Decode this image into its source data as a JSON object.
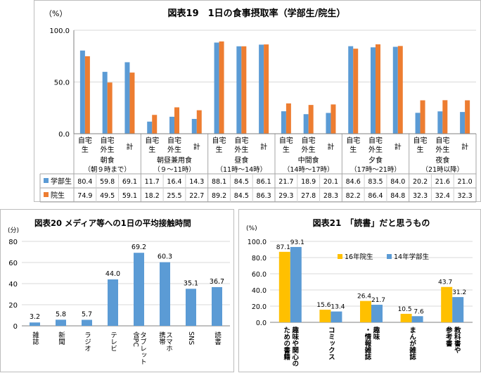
{
  "chart_data": [
    {
      "type": "bar",
      "title": "図表19　1日の食事摂取率（学部生/院生）",
      "unit": "（%）",
      "ylim": [
        0,
        100
      ],
      "yticks": [
        "0.0",
        "50.0",
        "100.0"
      ],
      "sub_labels": [
        [
          "自宅",
          "生"
        ],
        [
          "自宅",
          "外生"
        ],
        [
          "計"
        ]
      ],
      "groups": [
        {
          "label": "朝食",
          "sub": "（朝９時まで）"
        },
        {
          "label": "朝昼兼用食",
          "sub": "（９～11時）"
        },
        {
          "label": "昼食",
          "sub": "（11時～14時）"
        },
        {
          "label": "中間食",
          "sub": "（14時～17時）"
        },
        {
          "label": "夕食",
          "sub": "（17時～21時）"
        },
        {
          "label": "夜食",
          "sub": "（21時以降）"
        }
      ],
      "series": [
        {
          "name": "学部生",
          "color": "#5b9bd5",
          "values": [
            80.4,
            59.8,
            69.1,
            11.7,
            16.4,
            14.3,
            88.1,
            84.5,
            86.1,
            21.7,
            18.9,
            20.1,
            84.6,
            83.5,
            84.0,
            20.2,
            21.6,
            21.0
          ],
          "labels": [
            "80.4",
            "59.8",
            "69.1",
            "11.7",
            "16.4",
            "14.3",
            "88.1",
            "84.5",
            "86.1",
            "21.7",
            "18.9",
            "20.1",
            "84.6",
            "83.5",
            "84.0",
            "20.2",
            "21.6",
            "21.0"
          ]
        },
        {
          "name": "院生",
          "color": "#ed7d31",
          "values": [
            74.9,
            49.5,
            59.1,
            18.2,
            25.5,
            22.7,
            89.2,
            84.5,
            86.3,
            29.3,
            27.8,
            28.3,
            82.2,
            86.4,
            84.8,
            32.3,
            32.4,
            32.3
          ],
          "labels": [
            "74.9",
            "49.5",
            "59.1",
            "18.2",
            "25.5",
            "22.7",
            "89.2",
            "84.5",
            "86.3",
            "29.3",
            "27.8",
            "28.3",
            "82.2",
            "86.4",
            "84.8",
            "32.3",
            "32.4",
            "32.3"
          ]
        }
      ]
    },
    {
      "type": "bar",
      "title": "図表20 メディア等への1日の平均接触時間",
      "unit": "(分)",
      "ylim": [
        0,
        80
      ],
      "yticks": [
        "0",
        "20",
        "40",
        "60",
        "80"
      ],
      "categories": [
        "雑誌",
        "新聞",
        "ラジオ",
        "テレビ",
        "タブレット含PC",
        "スマホ携帯",
        "SNS",
        "読書"
      ],
      "series": [
        {
          "name": "",
          "color": "#5b9bd5",
          "values": [
            3.2,
            5.8,
            5.7,
            44.0,
            69.2,
            60.3,
            35.1,
            36.7
          ],
          "labels": [
            "3.2",
            "5.8",
            "5.7",
            "44.0",
            "69.2",
            "60.3",
            "35.1",
            "36.7"
          ]
        }
      ]
    },
    {
      "type": "bar",
      "title": "図表21　「読書」だと思うもの",
      "unit": "(%)",
      "ylim": [
        0,
        100
      ],
      "yticks": [
        "0.0",
        "20.0",
        "40.0",
        "60.0",
        "80.0",
        "100.0"
      ],
      "categories": [
        "趣味や関心のための書籍",
        "コミックス",
        "趣味・情報雑誌",
        "まんが雑誌",
        "教科書や参考書"
      ],
      "legend_position": "top-right",
      "series": [
        {
          "name": "16年院生",
          "color": "#ffc000",
          "values": [
            87.1,
            15.6,
            26.4,
            10.5,
            43.7
          ],
          "labels": [
            "87.1",
            "15.6",
            "26.4",
            "10.5",
            "43.7"
          ]
        },
        {
          "name": "14年学部生",
          "color": "#5b9bd5",
          "values": [
            93.1,
            13.4,
            21.7,
            7.6,
            31.2
          ],
          "labels": [
            "93.1",
            "13.4",
            "21.7",
            "7.6",
            "31.2"
          ]
        }
      ]
    }
  ]
}
